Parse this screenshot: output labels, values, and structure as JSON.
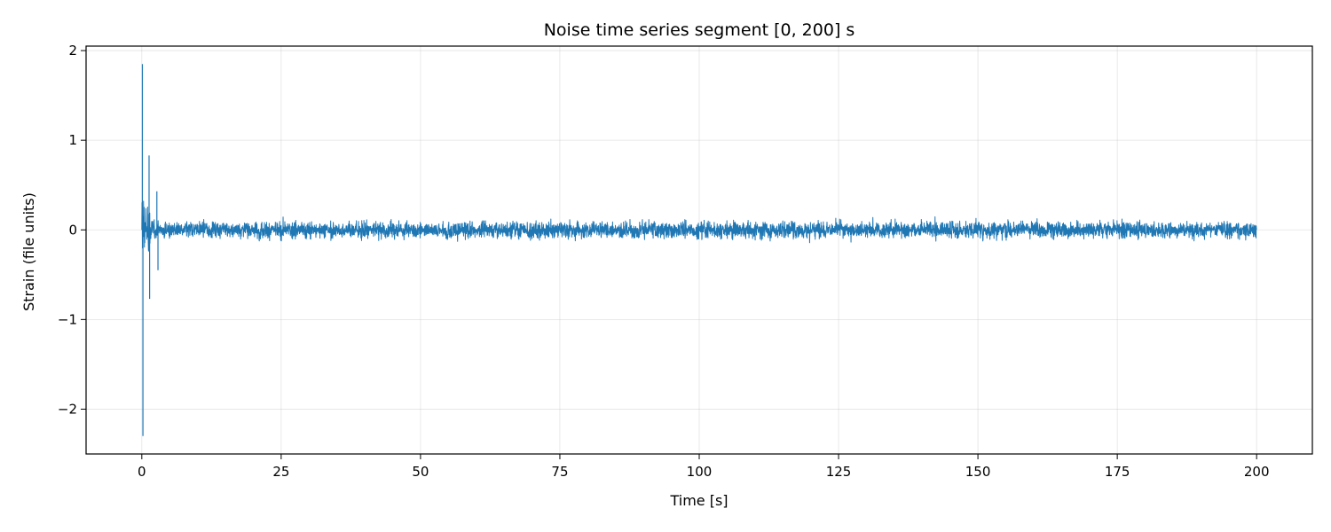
{
  "chart_data": {
    "type": "line",
    "title": "Noise time series segment [0, 200] s",
    "xlabel": "Time [s]",
    "ylabel": "Strain (file units)",
    "xlim": [
      -10,
      210
    ],
    "ylim": [
      -2.5,
      2.05
    ],
    "xticks": [
      0,
      25,
      50,
      75,
      100,
      125,
      150,
      175,
      200
    ],
    "xtick_labels": [
      "0",
      "25",
      "50",
      "75",
      "100",
      "125",
      "150",
      "175",
      "200"
    ],
    "yticks": [
      -2,
      -1,
      0,
      1,
      2
    ],
    "ytick_labels": [
      "−2",
      "−1",
      "0",
      "1",
      "2"
    ],
    "grid": true,
    "line_color": "#1f77b4",
    "series": [
      {
        "x_range": [
          0,
          200
        ],
        "y_min": -2.3,
        "y_max": 1.85,
        "transient_peaks": [
          {
            "x": 0.1,
            "y": 1.85
          },
          {
            "x": 0.2,
            "y": -2.3
          },
          {
            "x": 1.3,
            "y": 0.83
          },
          {
            "x": 1.4,
            "y": -0.77
          },
          {
            "x": 2.7,
            "y": 0.43
          },
          {
            "x": 2.9,
            "y": -0.45
          }
        ],
        "steady_envelope": [
          -0.2,
          0.2
        ]
      }
    ]
  }
}
